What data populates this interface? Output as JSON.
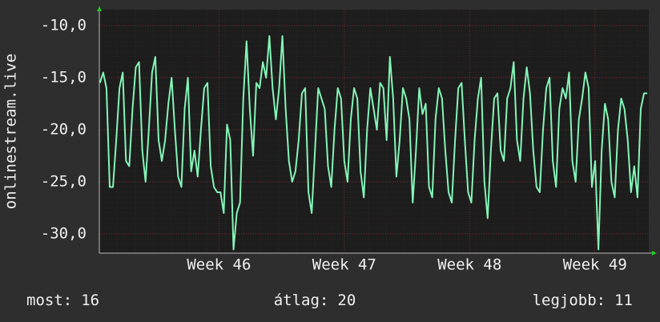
{
  "chart_data": {
    "type": "line",
    "ylabel": "onlinestream.live",
    "xlim": [
      45.045,
      49.43
    ],
    "ylim": [
      -31.85,
      -8.46
    ],
    "xticks": [
      {
        "value": 46,
        "label": "Week 46"
      },
      {
        "value": 47,
        "label": "Week 47"
      },
      {
        "value": 48,
        "label": "Week 48"
      },
      {
        "value": 49,
        "label": "Week 49"
      }
    ],
    "yticks": [
      {
        "value": -10,
        "label": "-10,0"
      },
      {
        "value": -15,
        "label": "-15,0"
      },
      {
        "value": -20,
        "label": "-20,0"
      },
      {
        "value": -25,
        "label": "-25,0"
      },
      {
        "value": -30,
        "label": "-30,0"
      }
    ],
    "grid": true,
    "series": [
      {
        "color": "#84f5b8",
        "x": [
          45.05,
          45.076,
          45.102,
          45.128,
          45.154,
          45.18,
          45.206,
          45.232,
          45.258,
          45.284,
          45.31,
          45.336,
          45.362,
          45.388,
          45.414,
          45.44,
          45.466,
          45.492,
          45.518,
          45.544,
          45.57,
          45.596,
          45.622,
          45.648,
          45.674,
          45.7,
          45.726,
          45.752,
          45.778,
          45.804,
          45.83,
          45.856,
          45.882,
          45.908,
          45.934,
          45.96,
          45.986,
          46.012,
          46.038,
          46.064,
          46.09,
          46.116,
          46.142,
          46.168,
          46.194,
          46.22,
          46.246,
          46.272,
          46.298,
          46.324,
          46.35,
          46.376,
          46.402,
          46.428,
          46.454,
          46.48,
          46.506,
          46.532,
          46.558,
          46.584,
          46.61,
          46.636,
          46.662,
          46.688,
          46.714,
          46.74,
          46.766,
          46.792,
          46.818,
          46.844,
          46.87,
          46.896,
          46.922,
          46.948,
          46.974,
          47,
          47.026,
          47.052,
          47.078,
          47.104,
          47.13,
          47.156,
          47.182,
          47.208,
          47.234,
          47.26,
          47.286,
          47.312,
          47.338,
          47.364,
          47.39,
          47.416,
          47.442,
          47.468,
          47.494,
          47.52,
          47.546,
          47.572,
          47.598,
          47.624,
          47.65,
          47.676,
          47.702,
          47.728,
          47.754,
          47.78,
          47.806,
          47.832,
          47.858,
          47.884,
          47.91,
          47.936,
          47.962,
          47.988,
          48.014,
          48.04,
          48.066,
          48.092,
          48.118,
          48.144,
          48.17,
          48.196,
          48.222,
          48.248,
          48.274,
          48.3,
          48.326,
          48.352,
          48.378,
          48.404,
          48.43,
          48.456,
          48.482,
          48.508,
          48.534,
          48.56,
          48.586,
          48.612,
          48.638,
          48.664,
          48.69,
          48.716,
          48.742,
          48.768,
          48.794,
          48.82,
          48.846,
          48.872,
          48.898,
          48.924,
          48.95,
          48.976,
          49.002,
          49.028,
          49.054,
          49.08,
          49.106,
          49.132,
          49.158,
          49.184,
          49.21,
          49.236,
          49.262,
          49.288,
          49.314,
          49.34,
          49.366,
          49.392,
          49.418
        ],
        "values": [
          -15.5,
          -14.5,
          -16,
          -25.5,
          -25.5,
          -21,
          -16,
          -14.5,
          -23,
          -23.5,
          -18,
          -14,
          -13.5,
          -22,
          -25,
          -20,
          -14.5,
          -13,
          -21,
          -23,
          -21,
          -17.5,
          -15,
          -20,
          -24.5,
          -25.5,
          -18,
          -15,
          -24,
          -22,
          -24.5,
          -20,
          -16,
          -15.5,
          -23.5,
          -25.5,
          -26,
          -26,
          -28,
          -19.5,
          -21,
          -31.5,
          -28,
          -27,
          -17,
          -11.5,
          -18,
          -22.5,
          -15.5,
          -16,
          -13.5,
          -15,
          -11,
          -16,
          -19,
          -16,
          -11,
          -18,
          -23,
          -25,
          -24,
          -21,
          -16.5,
          -16,
          -26,
          -28,
          -22,
          -16,
          -17,
          -18,
          -23.5,
          -25.5,
          -20,
          -16,
          -17,
          -23,
          -25,
          -19,
          -16,
          -17,
          -24,
          -26.5,
          -20,
          -16,
          -18,
          -20,
          -15.5,
          -16,
          -21,
          -13,
          -17,
          -24.5,
          -21,
          -16,
          -17,
          -19,
          -27,
          -22,
          -16,
          -18.5,
          -17.5,
          -25.5,
          -26.5,
          -19,
          -16,
          -17,
          -22,
          -26,
          -27,
          -21,
          -16,
          -15.5,
          -21,
          -26,
          -27,
          -21,
          -17,
          -15,
          -25,
          -28.5,
          -22,
          -17,
          -16.5,
          -22,
          -23,
          -17,
          -16,
          -13.5,
          -21,
          -23,
          -17,
          -14,
          -16.5,
          -22,
          -25.5,
          -26,
          -20,
          -16,
          -15,
          -23,
          -25.5,
          -18,
          -16,
          -17,
          -14.5,
          -23,
          -25,
          -19,
          -17,
          -14.5,
          -16,
          -25.5,
          -23,
          -31.5,
          -22,
          -17.5,
          -19,
          -25,
          -26.5,
          -20,
          -17,
          -18,
          -21,
          -26,
          -23.5,
          -26.5,
          -18,
          -16.5,
          -16.5
        ]
      }
    ],
    "footer": [
      {
        "label": "most:",
        "value": 16
      },
      {
        "label": "átlag:",
        "value": 20
      },
      {
        "label": "legjobb:",
        "value": 11
      }
    ]
  }
}
